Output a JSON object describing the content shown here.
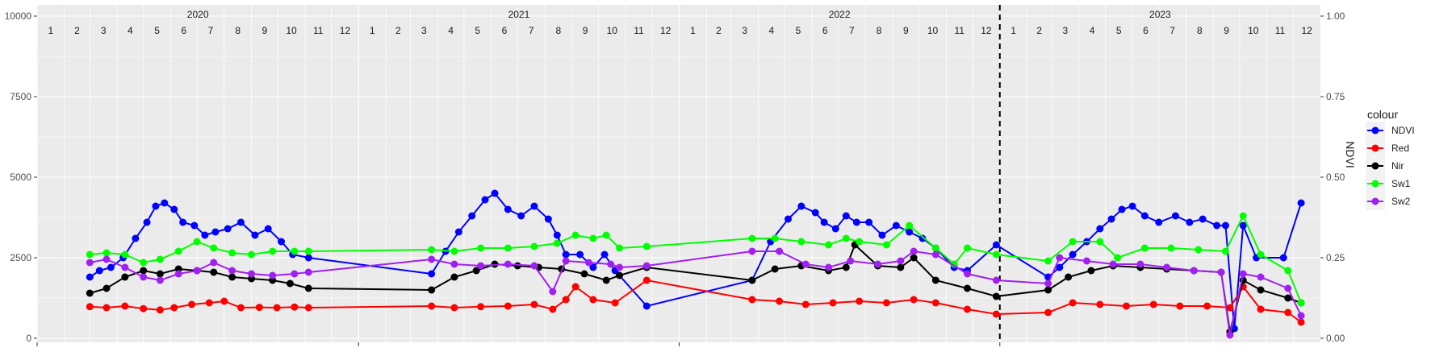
{
  "chart_data": {
    "type": "line",
    "x_type": "date",
    "xlim": [
      "2020-01-01",
      "2024-01-01"
    ],
    "ylim": [
      0,
      10000
    ],
    "y_ticks": [
      0,
      2500,
      5000,
      7500,
      10000
    ],
    "y2lim": [
      0,
      1
    ],
    "y2_ticks": [
      "0.00",
      "0.25",
      "0.50",
      "0.75",
      "1.00"
    ],
    "ylabel": "",
    "y2label": "NDVI",
    "xlabel": "",
    "years": [
      "2020",
      "2021",
      "2022",
      "2023"
    ],
    "months": [
      "1",
      "2",
      "3",
      "4",
      "5",
      "6",
      "7",
      "8",
      "9",
      "10",
      "11",
      "12"
    ],
    "vline_date": "2023-01-01",
    "grid": true,
    "legend_title": "colour",
    "legend_position": "right",
    "series": [
      {
        "name": "NDVI",
        "color": "#0000ff",
        "axis": "right",
        "points": [
          [
            "2020-03-01",
            0.19
          ],
          [
            "2020-03-12",
            0.21
          ],
          [
            "2020-03-25",
            0.22
          ],
          [
            "2020-04-08",
            0.25
          ],
          [
            "2020-04-22",
            0.31
          ],
          [
            "2020-05-05",
            0.36
          ],
          [
            "2020-05-15",
            0.41
          ],
          [
            "2020-05-25",
            0.42
          ],
          [
            "2020-06-05",
            0.4
          ],
          [
            "2020-06-15",
            0.36
          ],
          [
            "2020-06-28",
            0.35
          ],
          [
            "2020-07-10",
            0.32
          ],
          [
            "2020-07-22",
            0.33
          ],
          [
            "2020-08-05",
            0.34
          ],
          [
            "2020-08-20",
            0.36
          ],
          [
            "2020-09-05",
            0.32
          ],
          [
            "2020-09-20",
            0.34
          ],
          [
            "2020-10-05",
            0.3
          ],
          [
            "2020-10-18",
            0.26
          ],
          [
            "2020-11-05",
            0.25
          ],
          [
            "2021-03-25",
            0.2
          ],
          [
            "2021-04-10",
            0.27
          ],
          [
            "2021-04-25",
            0.33
          ],
          [
            "2021-05-10",
            0.38
          ],
          [
            "2021-05-25",
            0.43
          ],
          [
            "2021-06-05",
            0.45
          ],
          [
            "2021-06-20",
            0.4
          ],
          [
            "2021-07-05",
            0.38
          ],
          [
            "2021-07-20",
            0.41
          ],
          [
            "2021-08-05",
            0.37
          ],
          [
            "2021-08-15",
            0.32
          ],
          [
            "2021-08-25",
            0.26
          ],
          [
            "2021-09-10",
            0.26
          ],
          [
            "2021-09-25",
            0.22
          ],
          [
            "2021-10-08",
            0.26
          ],
          [
            "2021-10-20",
            0.21
          ],
          [
            "2021-11-25",
            0.1
          ],
          [
            "2022-03-25",
            0.18
          ],
          [
            "2022-04-15",
            0.3
          ],
          [
            "2022-05-05",
            0.37
          ],
          [
            "2022-05-20",
            0.41
          ],
          [
            "2022-06-05",
            0.39
          ],
          [
            "2022-06-15",
            0.36
          ],
          [
            "2022-06-28",
            0.34
          ],
          [
            "2022-07-10",
            0.38
          ],
          [
            "2022-07-22",
            0.36
          ],
          [
            "2022-08-05",
            0.36
          ],
          [
            "2022-08-20",
            0.32
          ],
          [
            "2022-09-05",
            0.35
          ],
          [
            "2022-09-20",
            0.33
          ],
          [
            "2022-10-05",
            0.31
          ],
          [
            "2022-10-20",
            0.28
          ],
          [
            "2022-11-10",
            0.22
          ],
          [
            "2022-11-25",
            0.21
          ],
          [
            "2022-12-28",
            0.29
          ],
          [
            "2023-02-25",
            0.19
          ],
          [
            "2023-03-10",
            0.22
          ],
          [
            "2023-03-25",
            0.26
          ],
          [
            "2023-04-10",
            0.3
          ],
          [
            "2023-04-25",
            0.34
          ],
          [
            "2023-05-08",
            0.37
          ],
          [
            "2023-05-20",
            0.4
          ],
          [
            "2023-06-01",
            0.41
          ],
          [
            "2023-06-15",
            0.38
          ],
          [
            "2023-07-01",
            0.36
          ],
          [
            "2023-07-20",
            0.38
          ],
          [
            "2023-08-05",
            0.36
          ],
          [
            "2023-08-20",
            0.37
          ],
          [
            "2023-09-05",
            0.35
          ],
          [
            "2023-09-15",
            0.35
          ],
          [
            "2023-09-25",
            0.03
          ],
          [
            "2023-10-05",
            0.35
          ],
          [
            "2023-10-20",
            0.25
          ],
          [
            "2023-11-20",
            0.25
          ],
          [
            "2023-12-10",
            0.42
          ]
        ]
      },
      {
        "name": "Red",
        "color": "#ff0000",
        "axis": "left",
        "points": [
          [
            "2020-03-01",
            980
          ],
          [
            "2020-03-20",
            950
          ],
          [
            "2020-04-10",
            1000
          ],
          [
            "2020-05-01",
            920
          ],
          [
            "2020-05-20",
            880
          ],
          [
            "2020-06-05",
            950
          ],
          [
            "2020-06-25",
            1050
          ],
          [
            "2020-07-15",
            1100
          ],
          [
            "2020-08-01",
            1150
          ],
          [
            "2020-08-20",
            950
          ],
          [
            "2020-09-10",
            960
          ],
          [
            "2020-09-30",
            950
          ],
          [
            "2020-10-20",
            970
          ],
          [
            "2020-11-05",
            950
          ],
          [
            "2021-03-25",
            1000
          ],
          [
            "2021-04-20",
            950
          ],
          [
            "2021-05-20",
            980
          ],
          [
            "2021-06-20",
            1000
          ],
          [
            "2021-07-20",
            1050
          ],
          [
            "2021-08-10",
            900
          ],
          [
            "2021-08-25",
            1200
          ],
          [
            "2021-09-05",
            1600
          ],
          [
            "2021-09-25",
            1200
          ],
          [
            "2021-10-20",
            1100
          ],
          [
            "2021-11-25",
            1800
          ],
          [
            "2022-03-25",
            1200
          ],
          [
            "2022-04-25",
            1150
          ],
          [
            "2022-05-25",
            1050
          ],
          [
            "2022-06-25",
            1100
          ],
          [
            "2022-07-25",
            1150
          ],
          [
            "2022-08-25",
            1100
          ],
          [
            "2022-09-25",
            1200
          ],
          [
            "2022-10-20",
            1100
          ],
          [
            "2022-11-25",
            900
          ],
          [
            "2022-12-28",
            750
          ],
          [
            "2023-02-25",
            800
          ],
          [
            "2023-03-25",
            1100
          ],
          [
            "2023-04-25",
            1050
          ],
          [
            "2023-05-25",
            1000
          ],
          [
            "2023-06-25",
            1050
          ],
          [
            "2023-07-25",
            1000
          ],
          [
            "2023-08-25",
            1000
          ],
          [
            "2023-09-20",
            950
          ],
          [
            "2023-10-05",
            1600
          ],
          [
            "2023-10-25",
            900
          ],
          [
            "2023-11-25",
            800
          ],
          [
            "2023-12-10",
            500
          ]
        ]
      },
      {
        "name": "Nir",
        "color": "#000000",
        "axis": "left",
        "points": [
          [
            "2020-03-01",
            1400
          ],
          [
            "2020-03-20",
            1550
          ],
          [
            "2020-04-10",
            1900
          ],
          [
            "2020-05-01",
            2100
          ],
          [
            "2020-05-20",
            2000
          ],
          [
            "2020-06-10",
            2150
          ],
          [
            "2020-07-01",
            2100
          ],
          [
            "2020-07-20",
            2050
          ],
          [
            "2020-08-10",
            1900
          ],
          [
            "2020-09-01",
            1850
          ],
          [
            "2020-09-25",
            1800
          ],
          [
            "2020-10-15",
            1700
          ],
          [
            "2020-11-05",
            1550
          ],
          [
            "2021-03-25",
            1500
          ],
          [
            "2021-04-20",
            1900
          ],
          [
            "2021-05-15",
            2100
          ],
          [
            "2021-06-05",
            2300
          ],
          [
            "2021-07-01",
            2250
          ],
          [
            "2021-07-25",
            2200
          ],
          [
            "2021-08-20",
            2150
          ],
          [
            "2021-09-15",
            2000
          ],
          [
            "2021-10-10",
            1800
          ],
          [
            "2021-10-25",
            1950
          ],
          [
            "2021-11-25",
            2200
          ],
          [
            "2022-03-25",
            1800
          ],
          [
            "2022-04-20",
            2150
          ],
          [
            "2022-05-20",
            2250
          ],
          [
            "2022-06-20",
            2100
          ],
          [
            "2022-07-10",
            2200
          ],
          [
            "2022-07-20",
            2900
          ],
          [
            "2022-08-15",
            2250
          ],
          [
            "2022-09-10",
            2200
          ],
          [
            "2022-09-25",
            2500
          ],
          [
            "2022-10-20",
            1800
          ],
          [
            "2022-11-25",
            1550
          ],
          [
            "2022-12-28",
            1300
          ],
          [
            "2023-02-25",
            1500
          ],
          [
            "2023-03-20",
            1900
          ],
          [
            "2023-04-15",
            2100
          ],
          [
            "2023-05-10",
            2250
          ],
          [
            "2023-06-10",
            2200
          ],
          [
            "2023-07-10",
            2150
          ],
          [
            "2023-08-10",
            2100
          ],
          [
            "2023-09-10",
            2050
          ],
          [
            "2023-09-20",
            200
          ],
          [
            "2023-10-05",
            1800
          ],
          [
            "2023-10-25",
            1500
          ],
          [
            "2023-11-25",
            1250
          ],
          [
            "2023-12-10",
            1100
          ]
        ]
      },
      {
        "name": "Sw1",
        "color": "#00ff00",
        "axis": "left",
        "points": [
          [
            "2020-03-01",
            2600
          ],
          [
            "2020-03-20",
            2650
          ],
          [
            "2020-04-10",
            2600
          ],
          [
            "2020-05-01",
            2350
          ],
          [
            "2020-05-20",
            2450
          ],
          [
            "2020-06-10",
            2700
          ],
          [
            "2020-07-01",
            3000
          ],
          [
            "2020-07-20",
            2800
          ],
          [
            "2020-08-10",
            2650
          ],
          [
            "2020-09-01",
            2600
          ],
          [
            "2020-09-25",
            2700
          ],
          [
            "2020-10-20",
            2700
          ],
          [
            "2020-11-05",
            2700
          ],
          [
            "2021-03-25",
            2750
          ],
          [
            "2021-04-20",
            2700
          ],
          [
            "2021-05-20",
            2800
          ],
          [
            "2021-06-20",
            2800
          ],
          [
            "2021-07-20",
            2850
          ],
          [
            "2021-08-15",
            2950
          ],
          [
            "2021-09-05",
            3200
          ],
          [
            "2021-09-25",
            3100
          ],
          [
            "2021-10-10",
            3200
          ],
          [
            "2021-10-25",
            2800
          ],
          [
            "2021-11-25",
            2850
          ],
          [
            "2022-03-25",
            3100
          ],
          [
            "2022-04-20",
            3100
          ],
          [
            "2022-05-20",
            3000
          ],
          [
            "2022-06-20",
            2900
          ],
          [
            "2022-07-10",
            3100
          ],
          [
            "2022-07-25",
            3000
          ],
          [
            "2022-08-25",
            2900
          ],
          [
            "2022-09-20",
            3500
          ],
          [
            "2022-10-20",
            2800
          ],
          [
            "2022-11-10",
            2300
          ],
          [
            "2022-11-25",
            2800
          ],
          [
            "2022-12-28",
            2600
          ],
          [
            "2023-02-25",
            2400
          ],
          [
            "2023-03-25",
            3000
          ],
          [
            "2023-04-25",
            3000
          ],
          [
            "2023-05-15",
            2500
          ],
          [
            "2023-06-15",
            2800
          ],
          [
            "2023-07-15",
            2800
          ],
          [
            "2023-08-15",
            2750
          ],
          [
            "2023-09-15",
            2700
          ],
          [
            "2023-10-05",
            3800
          ],
          [
            "2023-10-25",
            2600
          ],
          [
            "2023-11-25",
            2100
          ],
          [
            "2023-12-10",
            1100
          ]
        ]
      },
      {
        "name": "Sw2",
        "color": "#a020f0",
        "axis": "left",
        "points": [
          [
            "2020-03-01",
            2350
          ],
          [
            "2020-03-20",
            2450
          ],
          [
            "2020-04-10",
            2200
          ],
          [
            "2020-05-01",
            1900
          ],
          [
            "2020-05-20",
            1800
          ],
          [
            "2020-06-10",
            2000
          ],
          [
            "2020-07-01",
            2100
          ],
          [
            "2020-07-20",
            2350
          ],
          [
            "2020-08-10",
            2100
          ],
          [
            "2020-09-01",
            2000
          ],
          [
            "2020-09-25",
            1950
          ],
          [
            "2020-10-20",
            2000
          ],
          [
            "2020-11-05",
            2050
          ],
          [
            "2021-03-25",
            2450
          ],
          [
            "2021-04-20",
            2300
          ],
          [
            "2021-05-20",
            2250
          ],
          [
            "2021-06-20",
            2300
          ],
          [
            "2021-07-20",
            2250
          ],
          [
            "2021-08-10",
            1450
          ],
          [
            "2021-08-25",
            2400
          ],
          [
            "2021-09-20",
            2350
          ],
          [
            "2021-10-15",
            2300
          ],
          [
            "2021-10-25",
            2200
          ],
          [
            "2021-11-25",
            2250
          ],
          [
            "2022-03-25",
            2700
          ],
          [
            "2022-04-25",
            2700
          ],
          [
            "2022-05-25",
            2300
          ],
          [
            "2022-06-20",
            2200
          ],
          [
            "2022-07-15",
            2400
          ],
          [
            "2022-08-15",
            2300
          ],
          [
            "2022-09-10",
            2400
          ],
          [
            "2022-09-25",
            2700
          ],
          [
            "2022-10-20",
            2600
          ],
          [
            "2022-11-25",
            2000
          ],
          [
            "2022-12-28",
            1800
          ],
          [
            "2023-02-25",
            1700
          ],
          [
            "2023-03-10",
            2500
          ],
          [
            "2023-04-10",
            2400
          ],
          [
            "2023-05-10",
            2300
          ],
          [
            "2023-06-10",
            2300
          ],
          [
            "2023-07-10",
            2200
          ],
          [
            "2023-08-10",
            2100
          ],
          [
            "2023-09-10",
            2050
          ],
          [
            "2023-09-20",
            100
          ],
          [
            "2023-10-05",
            2000
          ],
          [
            "2023-10-25",
            1900
          ],
          [
            "2023-11-25",
            1550
          ],
          [
            "2023-12-10",
            700
          ]
        ]
      }
    ]
  }
}
